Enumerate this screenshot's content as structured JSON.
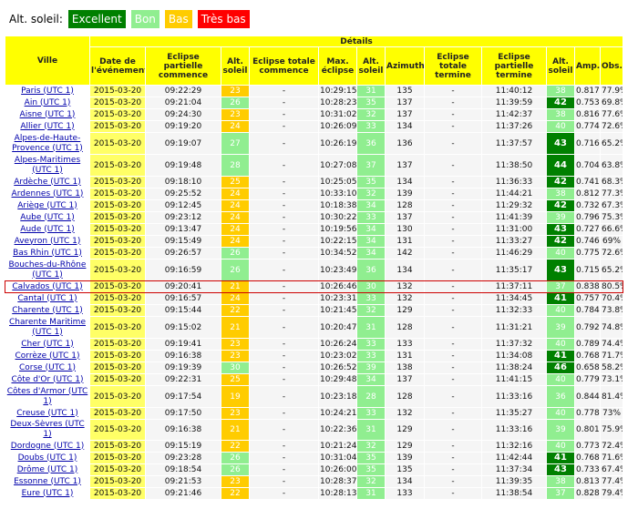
{
  "legend": {
    "label": "Alt. soleil:",
    "items": [
      {
        "text": "Excellent",
        "color": "#008000"
      },
      {
        "text": "Bon",
        "color": "#90ee90"
      },
      {
        "text": "Bas",
        "color": "#ffcc00"
      },
      {
        "text": "Très bas",
        "color": "#ff0000"
      }
    ]
  },
  "table": {
    "details_label": "Détails",
    "headers": [
      "Ville",
      "Date de l'événement",
      "Eclipse partielle commence",
      "Alt. soleil",
      "Eclipse totale commence",
      "Max. éclipse",
      "Alt. soleil",
      "Azimuth",
      "Eclipse totale termine",
      "Eclipse partielle termine",
      "Alt. soleil",
      "Amp.",
      "Obs."
    ],
    "rows": [
      {
        "ville": "Paris (UTC 1)",
        "date": "2015-03-20",
        "pstart": "09:22:29",
        "alt1": "23",
        "tstart": "-",
        "max": "10:29:15",
        "alt2": "31",
        "az": "135",
        "tend": "-",
        "pend": "11:40:12",
        "alt3": "38",
        "amp": "0.817",
        "obs": "77.9%",
        "c1": "y",
        "c2": "l",
        "c3": "l"
      },
      {
        "ville": "Ain (UTC 1)",
        "date": "2015-03-20",
        "pstart": "09:21:04",
        "alt1": "26",
        "tstart": "-",
        "max": "10:28:23",
        "alt2": "35",
        "az": "137",
        "tend": "-",
        "pend": "11:39:59",
        "alt3": "42",
        "amp": "0.753",
        "obs": "69.8%",
        "c1": "l",
        "c2": "l",
        "c3": "g"
      },
      {
        "ville": "Aisne (UTC 1)",
        "date": "2015-03-20",
        "pstart": "09:24:30",
        "alt1": "23",
        "tstart": "-",
        "max": "10:31:02",
        "alt2": "32",
        "az": "137",
        "tend": "-",
        "pend": "11:42:37",
        "alt3": "38",
        "amp": "0.816",
        "obs": "77.6%",
        "c1": "y",
        "c2": "l",
        "c3": "l"
      },
      {
        "ville": "Allier (UTC 1)",
        "date": "2015-03-20",
        "pstart": "09:19:20",
        "alt1": "24",
        "tstart": "-",
        "max": "10:26:09",
        "alt2": "33",
        "az": "134",
        "tend": "-",
        "pend": "11:37:26",
        "alt3": "40",
        "amp": "0.774",
        "obs": "72.6%",
        "c1": "y",
        "c2": "l",
        "c3": "l"
      },
      {
        "ville": "Alpes-de-Haute-Provence (UTC 1)",
        "date": "2015-03-20",
        "pstart": "09:19:07",
        "alt1": "27",
        "tstart": "-",
        "max": "10:26:19",
        "alt2": "36",
        "az": "136",
        "tend": "-",
        "pend": "11:37:57",
        "alt3": "43",
        "amp": "0.716",
        "obs": "65.2%",
        "c1": "l",
        "c2": "l",
        "c3": "g",
        "tall": true
      },
      {
        "ville": "Alpes-Maritimes (UTC 1)",
        "date": "2015-03-20",
        "pstart": "09:19:48",
        "alt1": "28",
        "tstart": "-",
        "max": "10:27:08",
        "alt2": "37",
        "az": "137",
        "tend": "-",
        "pend": "11:38:50",
        "alt3": "44",
        "amp": "0.704",
        "obs": "63.8%",
        "c1": "l",
        "c2": "l",
        "c3": "g",
        "tall": true
      },
      {
        "ville": "Ardèche (UTC 1)",
        "date": "2015-03-20",
        "pstart": "09:18:10",
        "alt1": "25",
        "tstart": "-",
        "max": "10:25:05",
        "alt2": "35",
        "az": "134",
        "tend": "-",
        "pend": "11:36:33",
        "alt3": "42",
        "amp": "0.741",
        "obs": "68.3%",
        "c1": "y",
        "c2": "l",
        "c3": "g"
      },
      {
        "ville": "Ardennes (UTC 1)",
        "date": "2015-03-20",
        "pstart": "09:25:52",
        "alt1": "24",
        "tstart": "-",
        "max": "10:33:10",
        "alt2": "32",
        "az": "139",
        "tend": "-",
        "pend": "11:44:21",
        "alt3": "38",
        "amp": "0.812",
        "obs": "77.3%",
        "c1": "y",
        "c2": "l",
        "c3": "l"
      },
      {
        "ville": "Ariège (UTC 1)",
        "date": "2015-03-20",
        "pstart": "09:12:45",
        "alt1": "24",
        "tstart": "-",
        "max": "10:18:38",
        "alt2": "34",
        "az": "128",
        "tend": "-",
        "pend": "11:29:32",
        "alt3": "42",
        "amp": "0.732",
        "obs": "67.3%",
        "c1": "y",
        "c2": "l",
        "c3": "g"
      },
      {
        "ville": "Aube (UTC 1)",
        "date": "2015-03-20",
        "pstart": "09:23:12",
        "alt1": "24",
        "tstart": "-",
        "max": "10:30:22",
        "alt2": "33",
        "az": "137",
        "tend": "-",
        "pend": "11:41:39",
        "alt3": "39",
        "amp": "0.796",
        "obs": "75.3%",
        "c1": "y",
        "c2": "l",
        "c3": "l"
      },
      {
        "ville": "Aude (UTC 1)",
        "date": "2015-03-20",
        "pstart": "09:13:47",
        "alt1": "24",
        "tstart": "-",
        "max": "10:19:56",
        "alt2": "34",
        "az": "130",
        "tend": "-",
        "pend": "11:31:00",
        "alt3": "43",
        "amp": "0.727",
        "obs": "66.6%",
        "c1": "y",
        "c2": "l",
        "c3": "g"
      },
      {
        "ville": "Aveyron (UTC 1)",
        "date": "2015-03-20",
        "pstart": "09:15:49",
        "alt1": "24",
        "tstart": "-",
        "max": "10:22:15",
        "alt2": "34",
        "az": "131",
        "tend": "-",
        "pend": "11:33:27",
        "alt3": "42",
        "amp": "0.746",
        "obs": "69%",
        "c1": "y",
        "c2": "l",
        "c3": "g"
      },
      {
        "ville": "Bas Rhin (UTC 1)",
        "date": "2015-03-20",
        "pstart": "09:26:57",
        "alt1": "26",
        "tstart": "-",
        "max": "10:34:52",
        "alt2": "34",
        "az": "142",
        "tend": "-",
        "pend": "11:46:29",
        "alt3": "40",
        "amp": "0.775",
        "obs": "72.6%",
        "c1": "l",
        "c2": "l",
        "c3": "l"
      },
      {
        "ville": "Bouches-du-Rhône (UTC 1)",
        "date": "2015-03-20",
        "pstart": "09:16:59",
        "alt1": "26",
        "tstart": "-",
        "max": "10:23:49",
        "alt2": "36",
        "az": "134",
        "tend": "-",
        "pend": "11:35:17",
        "alt3": "43",
        "amp": "0.715",
        "obs": "65.2%",
        "c1": "l",
        "c2": "l",
        "c3": "g",
        "tall": true
      },
      {
        "ville": "Calvados (UTC 1)",
        "date": "2015-03-20",
        "pstart": "09:20:41",
        "alt1": "21",
        "tstart": "-",
        "max": "10:26:46",
        "alt2": "30",
        "az": "132",
        "tend": "-",
        "pend": "11:37:11",
        "alt3": "37",
        "amp": "0.838",
        "obs": "80.5%",
        "c1": "y",
        "c2": "l",
        "c3": "l",
        "hl": true
      },
      {
        "ville": "Cantal (UTC 1)",
        "date": "2015-03-20",
        "pstart": "09:16:57",
        "alt1": "24",
        "tstart": "-",
        "max": "10:23:31",
        "alt2": "33",
        "az": "132",
        "tend": "-",
        "pend": "11:34:45",
        "alt3": "41",
        "amp": "0.757",
        "obs": "70.4%",
        "c1": "y",
        "c2": "l",
        "c3": "g"
      },
      {
        "ville": "Charente (UTC 1)",
        "date": "2015-03-20",
        "pstart": "09:15:44",
        "alt1": "22",
        "tstart": "-",
        "max": "10:21:45",
        "alt2": "32",
        "az": "129",
        "tend": "-",
        "pend": "11:32:33",
        "alt3": "40",
        "amp": "0.784",
        "obs": "73.8%",
        "c1": "y",
        "c2": "l",
        "c3": "l"
      },
      {
        "ville": "Charente Maritime (UTC 1)",
        "date": "2015-03-20",
        "pstart": "09:15:02",
        "alt1": "21",
        "tstart": "-",
        "max": "10:20:47",
        "alt2": "31",
        "az": "128",
        "tend": "-",
        "pend": "11:31:21",
        "alt3": "39",
        "amp": "0.792",
        "obs": "74.8%",
        "c1": "y",
        "c2": "l",
        "c3": "l",
        "tall": true
      },
      {
        "ville": "Cher (UTC 1)",
        "date": "2015-03-20",
        "pstart": "09:19:41",
        "alt1": "23",
        "tstart": "-",
        "max": "10:26:24",
        "alt2": "33",
        "az": "133",
        "tend": "-",
        "pend": "11:37:32",
        "alt3": "40",
        "amp": "0.789",
        "obs": "74.4%",
        "c1": "y",
        "c2": "l",
        "c3": "l"
      },
      {
        "ville": "Corrèze (UTC 1)",
        "date": "2015-03-20",
        "pstart": "09:16:38",
        "alt1": "23",
        "tstart": "-",
        "max": "10:23:02",
        "alt2": "33",
        "az": "131",
        "tend": "-",
        "pend": "11:34:08",
        "alt3": "41",
        "amp": "0.768",
        "obs": "71.7%",
        "c1": "y",
        "c2": "l",
        "c3": "g"
      },
      {
        "ville": "Corse (UTC 1)",
        "date": "2015-03-20",
        "pstart": "09:19:39",
        "alt1": "30",
        "tstart": "-",
        "max": "10:26:52",
        "alt2": "39",
        "az": "138",
        "tend": "-",
        "pend": "11:38:24",
        "alt3": "46",
        "amp": "0.658",
        "obs": "58.2%",
        "c1": "l",
        "c2": "l",
        "c3": "g"
      },
      {
        "ville": "Côte d'Or (UTC 1)",
        "date": "2015-03-20",
        "pstart": "09:22:31",
        "alt1": "25",
        "tstart": "-",
        "max": "10:29:48",
        "alt2": "34",
        "az": "137",
        "tend": "-",
        "pend": "11:41:15",
        "alt3": "40",
        "amp": "0.779",
        "obs": "73.1%",
        "c1": "y",
        "c2": "l",
        "c3": "l"
      },
      {
        "ville": "Côtes d'Armor (UTC 1)",
        "date": "2015-03-20",
        "pstart": "09:17:54",
        "alt1": "19",
        "tstart": "-",
        "max": "10:23:18",
        "alt2": "28",
        "az": "128",
        "tend": "-",
        "pend": "11:33:16",
        "alt3": "36",
        "amp": "0.844",
        "obs": "81.4%",
        "c1": "y",
        "c2": "l",
        "c3": "l",
        "tall": true
      },
      {
        "ville": "Creuse (UTC 1)",
        "date": "2015-03-20",
        "pstart": "09:17:50",
        "alt1": "23",
        "tstart": "-",
        "max": "10:24:21",
        "alt2": "33",
        "az": "132",
        "tend": "-",
        "pend": "11:35:27",
        "alt3": "40",
        "amp": "0.778",
        "obs": "73%",
        "c1": "y",
        "c2": "l",
        "c3": "l"
      },
      {
        "ville": "Deux-Sèvres (UTC 1)",
        "date": "2015-03-20",
        "pstart": "09:16:38",
        "alt1": "21",
        "tstart": "-",
        "max": "10:22:36",
        "alt2": "31",
        "az": "129",
        "tend": "-",
        "pend": "11:33:16",
        "alt3": "39",
        "amp": "0.801",
        "obs": "75.9%",
        "c1": "y",
        "c2": "l",
        "c3": "l"
      },
      {
        "ville": "Dordogne (UTC 1)",
        "date": "2015-03-20",
        "pstart": "09:15:19",
        "alt1": "22",
        "tstart": "-",
        "max": "10:21:24",
        "alt2": "32",
        "az": "129",
        "tend": "-",
        "pend": "11:32:16",
        "alt3": "40",
        "amp": "0.773",
        "obs": "72.4%",
        "c1": "y",
        "c2": "l",
        "c3": "l"
      },
      {
        "ville": "Doubs (UTC 1)",
        "date": "2015-03-20",
        "pstart": "09:23:28",
        "alt1": "26",
        "tstart": "-",
        "max": "10:31:04",
        "alt2": "35",
        "az": "139",
        "tend": "-",
        "pend": "11:42:44",
        "alt3": "41",
        "amp": "0.768",
        "obs": "71.6%",
        "c1": "l",
        "c2": "l",
        "c3": "g"
      },
      {
        "ville": "Drôme (UTC 1)",
        "date": "2015-03-20",
        "pstart": "09:18:54",
        "alt1": "26",
        "tstart": "-",
        "max": "10:26:00",
        "alt2": "35",
        "az": "135",
        "tend": "-",
        "pend": "11:37:34",
        "alt3": "43",
        "amp": "0.733",
        "obs": "67.4%",
        "c1": "l",
        "c2": "l",
        "c3": "g"
      },
      {
        "ville": "Essonne (UTC 1)",
        "date": "2015-03-20",
        "pstart": "09:21:53",
        "alt1": "23",
        "tstart": "-",
        "max": "10:28:37",
        "alt2": "32",
        "az": "134",
        "tend": "-",
        "pend": "11:39:35",
        "alt3": "38",
        "amp": "0.813",
        "obs": "77.4%",
        "c1": "y",
        "c2": "l",
        "c3": "l"
      },
      {
        "ville": "Eure (UTC 1)",
        "date": "2015-03-20",
        "pstart": "09:21:46",
        "alt1": "22",
        "tstart": "-",
        "max": "10:28:13",
        "alt2": "31",
        "az": "133",
        "tend": "-",
        "pend": "11:38:54",
        "alt3": "37",
        "amp": "0.828",
        "obs": "79.4%",
        "c1": "y",
        "c2": "l",
        "c3": "l"
      }
    ]
  }
}
